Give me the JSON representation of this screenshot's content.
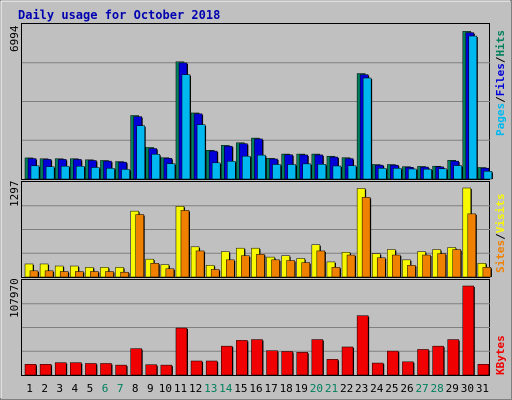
{
  "title": "Daily usage for October 2018",
  "colors": {
    "frame_bg": "#c0c0c0",
    "plot_bg": "#c0c0c0",
    "title": "#0000b0",
    "hits": "#00805c",
    "files": "#0000d8",
    "pages": "#00b8f0",
    "visits": "#f8f800",
    "sites": "#f08000",
    "kbytes": "#f00000",
    "weekend_label": "#00805c",
    "weekday_label": "#000000",
    "gridline": "#808080"
  },
  "panel_labels": {
    "top_max": "6994",
    "mid_max": "1297",
    "bottom_max": "107970"
  },
  "legend": {
    "pages": "Pages",
    "files": "Files",
    "hits": "Hits",
    "sites": "Sites",
    "visits": "Visits",
    "kbytes": "KBytes",
    "sep": "/"
  },
  "chart_data": {
    "type": "bar",
    "title": "Daily usage for October 2018",
    "categories": [
      "1",
      "2",
      "3",
      "4",
      "5",
      "6",
      "7",
      "8",
      "9",
      "10",
      "11",
      "12",
      "13",
      "14",
      "15",
      "16",
      "17",
      "18",
      "19",
      "20",
      "21",
      "22",
      "23",
      "24",
      "25",
      "26",
      "27",
      "28",
      "29",
      "30",
      "31"
    ],
    "weekend_days": [
      "6",
      "7",
      "13",
      "14",
      "20",
      "21",
      "27",
      "28"
    ],
    "panels": [
      {
        "name": "top",
        "ymax": 6994,
        "series": [
          {
            "name": "Hits",
            "values": [
              990,
              950,
              950,
              950,
              900,
              870,
              820,
              2980,
              1480,
              1000,
              5500,
              3100,
              1350,
              1580,
              1700,
              1920,
              970,
              1170,
              1170,
              1170,
              1070,
              1000,
              4950,
              680,
              680,
              580,
              590,
              600,
              880,
              6930,
              540
            ]
          },
          {
            "name": "Files",
            "values": [
              960,
              920,
              920,
              920,
              870,
              840,
              790,
              2930,
              1430,
              970,
              5450,
              3060,
              1310,
              1540,
              1660,
              1880,
              940,
              1140,
              1130,
              1130,
              1030,
              960,
              4900,
              650,
              650,
              550,
              560,
              570,
              840,
              6870,
              510
            ]
          },
          {
            "name": "Pages",
            "values": [
              620,
              580,
              600,
              600,
              540,
              500,
              450,
              2500,
              1160,
              720,
              4900,
              2550,
              760,
              830,
              1070,
              1120,
              680,
              680,
              710,
              690,
              610,
              620,
              4740,
              500,
              500,
              470,
              460,
              480,
              630,
              6710,
              360
            ]
          }
        ]
      },
      {
        "name": "middle",
        "ymax": 1297,
        "series": [
          {
            "name": "Visits",
            "values": [
              190,
              190,
              160,
              160,
              140,
              140,
              140,
              960,
              260,
              180,
              1030,
              440,
              170,
              370,
              420,
              420,
              290,
              310,
              270,
              470,
              220,
              360,
              1290,
              340,
              400,
              250,
              370,
              400,
              430,
              1297,
              200
            ]
          },
          {
            "name": "Sites",
            "values": [
              90,
              90,
              80,
              80,
              80,
              80,
              70,
              910,
              200,
              120,
              970,
              380,
              110,
              250,
              310,
              330,
              250,
              240,
              210,
              380,
              140,
              320,
              1160,
              280,
              320,
              170,
              320,
              340,
              400,
              920,
              140
            ]
          }
        ]
      },
      {
        "name": "bottom",
        "ymax": 107970,
        "series": [
          {
            "name": "KBytes",
            "values": [
              13000,
              13000,
              15000,
              15000,
              14000,
              14000,
              12000,
              32000,
              12500,
              12000,
              57000,
              17000,
              17000,
              35000,
              42000,
              43000,
              29500,
              28500,
              27500,
              43000,
              19000,
              34000,
              72000,
              14500,
              29000,
              16000,
              31000,
              35000,
              43000,
              107970,
              13000
            ]
          }
        ]
      }
    ]
  }
}
